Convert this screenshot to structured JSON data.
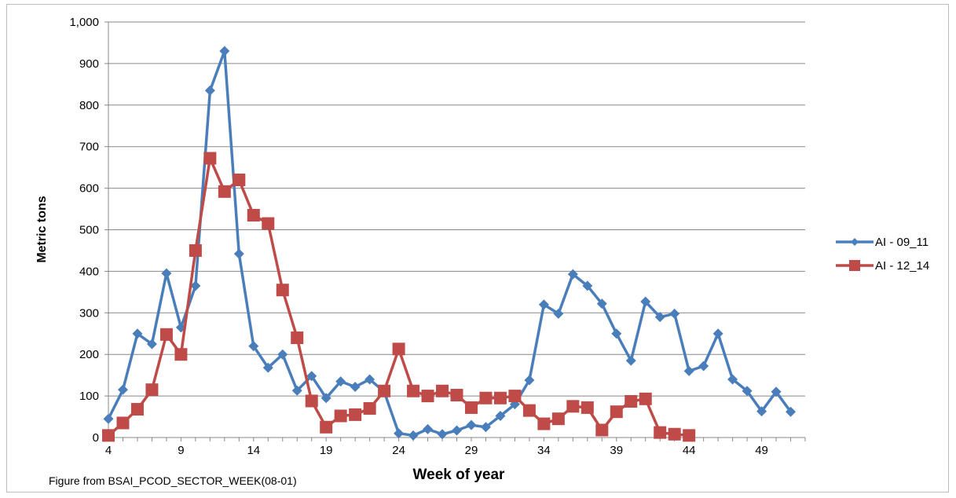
{
  "chart_data": {
    "type": "line",
    "title": "",
    "xlabel": "Week of year",
    "ylabel": "Metric tons",
    "source_note": "Figure from  BSAI_PCOD_SECTOR_WEEK(08-01)",
    "xlim": [
      4,
      52
    ],
    "ylim": [
      0,
      1000
    ],
    "x_ticks": [
      4,
      9,
      14,
      19,
      24,
      29,
      34,
      39,
      44,
      49
    ],
    "y_ticks": [
      0,
      100,
      200,
      300,
      400,
      500,
      600,
      700,
      800,
      900,
      1000
    ],
    "y_tick_labels": [
      "0",
      "100",
      "200",
      "300",
      "400",
      "500",
      "600",
      "700",
      "800",
      "900",
      "1,000"
    ],
    "grid": "horizontal",
    "legend_position": "right",
    "series": [
      {
        "name": "AI - 09_11",
        "color": "#4a7ebb",
        "marker": "diamond",
        "points": [
          [
            4,
            45
          ],
          [
            5,
            115
          ],
          [
            6,
            250
          ],
          [
            7,
            225
          ],
          [
            8,
            395
          ],
          [
            9,
            265
          ],
          [
            10,
            365
          ],
          [
            11,
            835
          ],
          [
            12,
            930
          ],
          [
            13,
            442
          ],
          [
            14,
            220
          ],
          [
            15,
            168
          ],
          [
            16,
            200
          ],
          [
            17,
            113
          ],
          [
            18,
            148
          ],
          [
            19,
            95
          ],
          [
            20,
            135
          ],
          [
            21,
            122
          ],
          [
            22,
            140
          ],
          [
            23,
            110
          ],
          [
            24,
            10
          ],
          [
            25,
            5
          ],
          [
            26,
            20
          ],
          [
            27,
            8
          ],
          [
            28,
            17
          ],
          [
            29,
            30
          ],
          [
            30,
            25
          ],
          [
            31,
            52
          ],
          [
            32,
            80
          ],
          [
            33,
            138
          ],
          [
            34,
            320
          ],
          [
            35,
            298
          ],
          [
            36,
            393
          ],
          [
            37,
            365
          ],
          [
            38,
            322
          ],
          [
            39,
            250
          ],
          [
            40,
            185
          ],
          [
            41,
            327
          ],
          [
            42,
            290
          ],
          [
            43,
            298
          ],
          [
            44,
            160
          ],
          [
            45,
            172
          ],
          [
            46,
            250
          ],
          [
            47,
            140
          ],
          [
            48,
            112
          ],
          [
            49,
            63
          ],
          [
            50,
            110
          ],
          [
            51,
            62
          ]
        ]
      },
      {
        "name": "AI - 12_14",
        "color": "#be4b48",
        "marker": "square",
        "points": [
          [
            4,
            5
          ],
          [
            5,
            35
          ],
          [
            6,
            68
          ],
          [
            7,
            115
          ],
          [
            8,
            248
          ],
          [
            9,
            200
          ],
          [
            10,
            450
          ],
          [
            11,
            672
          ],
          [
            12,
            592
          ],
          [
            13,
            620
          ],
          [
            14,
            535
          ],
          [
            15,
            515
          ],
          [
            16,
            355
          ],
          [
            17,
            240
          ],
          [
            18,
            88
          ],
          [
            19,
            25
          ],
          [
            20,
            52
          ],
          [
            21,
            55
          ],
          [
            22,
            70
          ],
          [
            23,
            112
          ],
          [
            24,
            213
          ],
          [
            25,
            112
          ],
          [
            26,
            100
          ],
          [
            27,
            112
          ],
          [
            28,
            102
          ],
          [
            29,
            72
          ],
          [
            30,
            95
          ],
          [
            31,
            95
          ],
          [
            32,
            100
          ],
          [
            33,
            65
          ],
          [
            34,
            33
          ],
          [
            35,
            45
          ],
          [
            36,
            75
          ],
          [
            37,
            72
          ],
          [
            38,
            18
          ],
          [
            39,
            62
          ],
          [
            40,
            87
          ],
          [
            41,
            93
          ],
          [
            42,
            12
          ],
          [
            43,
            8
          ],
          [
            44,
            5
          ]
        ]
      }
    ]
  }
}
